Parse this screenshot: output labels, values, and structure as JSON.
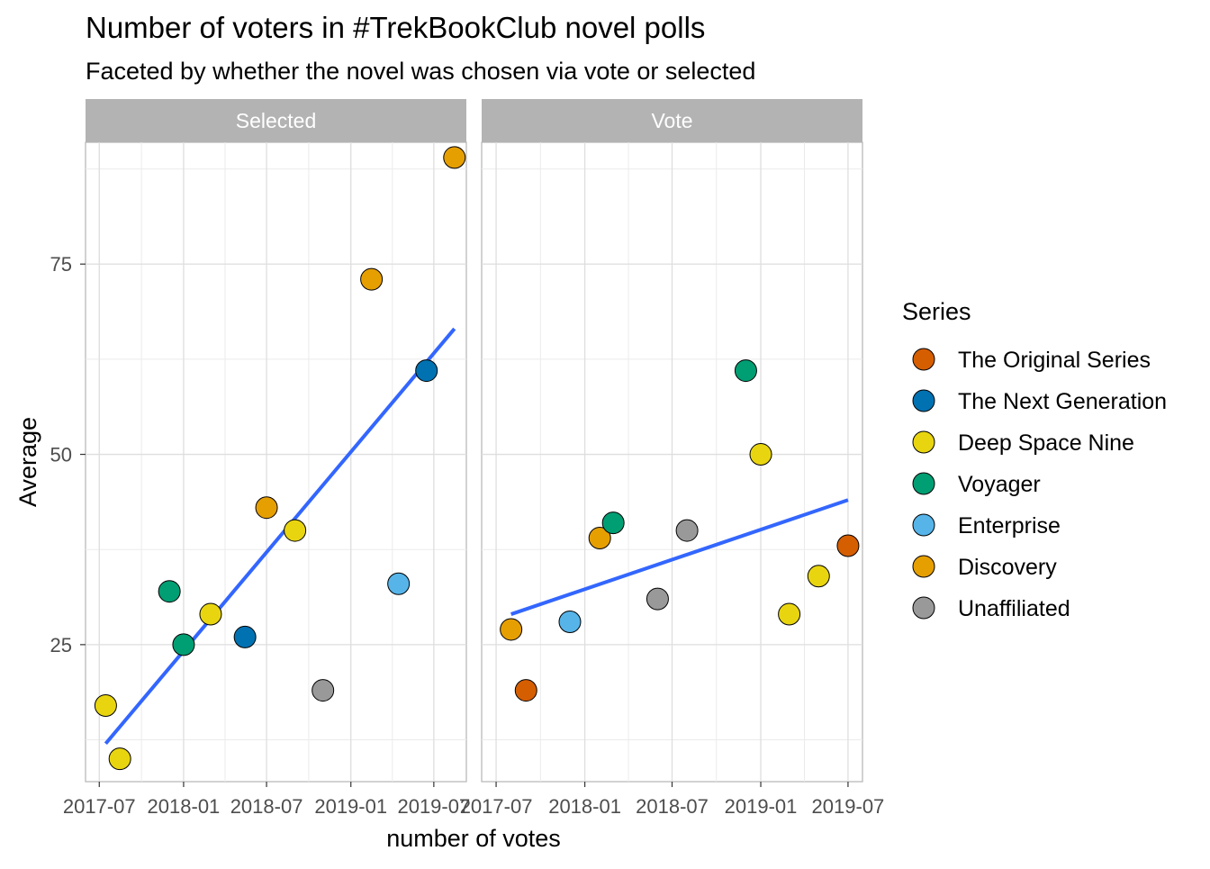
{
  "chart_data": {
    "type": "scatter",
    "title": "Number of voters in #TrekBookClub novel polls",
    "subtitle": "Faceted by whether the novel was chosen via vote or selected",
    "xlabel": "number of votes",
    "ylabel": "Average",
    "x_ticks": [
      "2017-07",
      "2018-01",
      "2018-07",
      "2019-01",
      "2019-07"
    ],
    "y_ticks": [
      25,
      50,
      75
    ],
    "ylim": [
      7,
      91
    ],
    "grid": true,
    "legend": {
      "title": "Series",
      "position": "right",
      "entries": [
        {
          "name": "The Original Series",
          "color": "#D55E00"
        },
        {
          "name": "The Next Generation",
          "color": "#0072B2"
        },
        {
          "name": "Deep Space Nine",
          "color": "#E8D510"
        },
        {
          "name": "Voyager",
          "color": "#009E73"
        },
        {
          "name": "Enterprise",
          "color": "#56B4E9"
        },
        {
          "name": "Discovery",
          "color": "#E69F00"
        },
        {
          "name": "Unaffiliated",
          "color": "#999999"
        }
      ]
    },
    "trend_color": "#3366FF",
    "facets": [
      {
        "label": "Selected",
        "xlim": [
          "2017-06-01",
          "2019-09-10"
        ],
        "points": [
          {
            "x": "2017-07-15",
            "y": 17,
            "series": "Deep Space Nine"
          },
          {
            "x": "2017-08-15",
            "y": 10,
            "series": "Deep Space Nine"
          },
          {
            "x": "2017-12-01",
            "y": 32,
            "series": "Voyager"
          },
          {
            "x": "2018-01-01",
            "y": 25,
            "series": "Voyager"
          },
          {
            "x": "2018-03-01",
            "y": 29,
            "series": "Deep Space Nine"
          },
          {
            "x": "2018-05-15",
            "y": 26,
            "series": "The Next Generation"
          },
          {
            "x": "2018-07-01",
            "y": 43,
            "series": "Discovery"
          },
          {
            "x": "2018-09-01",
            "y": 40,
            "series": "Deep Space Nine"
          },
          {
            "x": "2018-11-01",
            "y": 19,
            "series": "Unaffiliated"
          },
          {
            "x": "2019-02-15",
            "y": 73,
            "series": "Discovery"
          },
          {
            "x": "2019-04-15",
            "y": 33,
            "series": "Enterprise"
          },
          {
            "x": "2019-06-15",
            "y": 61,
            "series": "The Next Generation"
          },
          {
            "x": "2019-08-15",
            "y": 89,
            "series": "Discovery"
          }
        ],
        "trend": [
          {
            "x": "2017-07-15",
            "y": 12
          },
          {
            "x": "2019-08-15",
            "y": 66.5
          }
        ]
      },
      {
        "label": "Vote",
        "xlim": [
          "2017-06-01",
          "2019-07-31"
        ],
        "points": [
          {
            "x": "2017-08-01",
            "y": 27,
            "series": "Discovery"
          },
          {
            "x": "2017-09-01",
            "y": 19,
            "series": "The Original Series"
          },
          {
            "x": "2017-12-01",
            "y": 28,
            "series": "Enterprise"
          },
          {
            "x": "2018-02-01",
            "y": 39,
            "series": "Discovery"
          },
          {
            "x": "2018-03-01",
            "y": 41,
            "series": "Voyager"
          },
          {
            "x": "2018-06-01",
            "y": 31,
            "series": "Unaffiliated"
          },
          {
            "x": "2018-08-01",
            "y": 40,
            "series": "Unaffiliated"
          },
          {
            "x": "2018-12-01",
            "y": 61,
            "series": "Voyager"
          },
          {
            "x": "2019-01-01",
            "y": 50,
            "series": "Deep Space Nine"
          },
          {
            "x": "2019-03-01",
            "y": 29,
            "series": "Deep Space Nine"
          },
          {
            "x": "2019-05-01",
            "y": 34,
            "series": "Deep Space Nine"
          },
          {
            "x": "2019-07-01",
            "y": 38,
            "series": "The Original Series"
          }
        ],
        "trend": [
          {
            "x": "2017-08-01",
            "y": 29
          },
          {
            "x": "2019-07-01",
            "y": 44
          }
        ]
      }
    ]
  }
}
